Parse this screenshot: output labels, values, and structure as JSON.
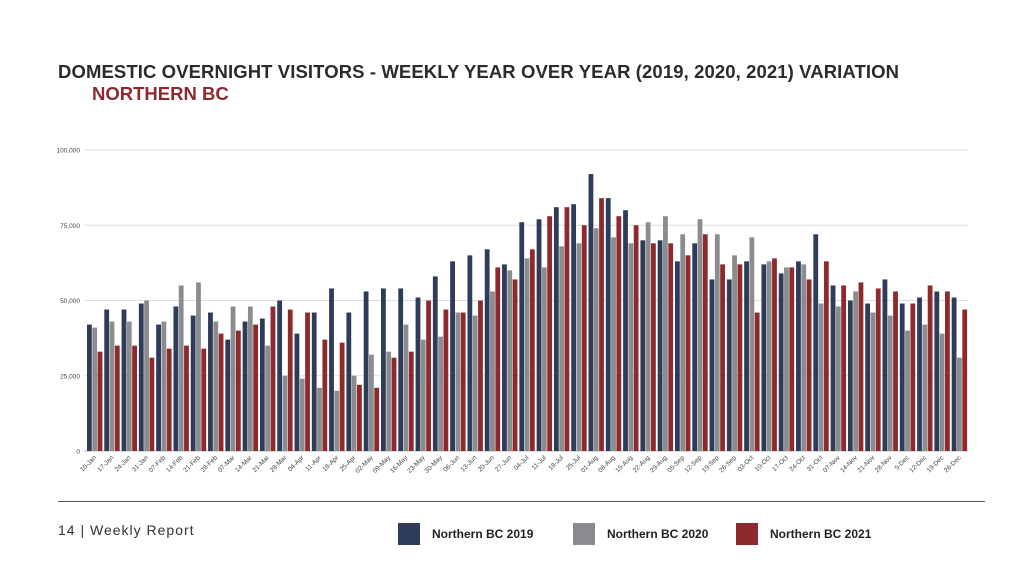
{
  "page": {
    "title": "DOMESTIC OVERNIGHT VISITORS - WEEKLY YEAR OVER YEAR (2019, 2020, 2021) VARIATION",
    "subtitle": "NORTHERN BC",
    "footer": "14 | Weekly Report"
  },
  "colors": {
    "s2019": "#2e3c5a",
    "s2020": "#8b8c8f",
    "s2021": "#8e2a2e",
    "grid": "#dddddd",
    "text": "#333333"
  },
  "chart_data": {
    "type": "bar",
    "title": "DOMESTIC OVERNIGHT VISITORS - WEEKLY YEAR OVER YEAR (2019, 2020, 2021) VARIATION",
    "subtitle": "NORTHERN BC",
    "xlabel": "",
    "ylabel": "",
    "ylim": [
      0,
      100000
    ],
    "yticks": [
      0,
      25000,
      50000,
      75000,
      100000
    ],
    "ytick_labels": [
      "0",
      "25,000",
      "50,000",
      "75,000",
      "100,000"
    ],
    "grid": true,
    "legend": "bottom",
    "categories": [
      "10-Jan",
      "17-Jan",
      "24-Jan",
      "31-Jan",
      "07-Feb",
      "14-Feb",
      "21-Feb",
      "28-Feb",
      "07-Mar",
      "14-Mar",
      "21-Mar",
      "28-Mar",
      "04-Apr",
      "11-Apr",
      "18-Apr",
      "25-Apr",
      "02-May",
      "09-May",
      "16-May",
      "23-May",
      "30-May",
      "06-Jun",
      "13-Jun",
      "20-Jun",
      "27-Jun",
      "04-Jul",
      "11-Jul",
      "18-Jul",
      "25-Jul",
      "01-Aug",
      "08-Aug",
      "15-Aug",
      "22-Aug",
      "29-Aug",
      "05-Sep",
      "12-Sep",
      "19-Sep",
      "26-Sep",
      "03-Oct",
      "10-Oct",
      "17-Oct",
      "24-Oct",
      "31-Oct",
      "07-Nov",
      "14-Nov",
      "21-Nov",
      "28-Nov",
      "5-Dec",
      "12-Dec",
      "19-Dec",
      "26-Dec"
    ],
    "series": [
      {
        "name": "Northern BC 2019",
        "color": "#2e3c5a",
        "values": [
          42000,
          47000,
          47000,
          49000,
          42000,
          48000,
          45000,
          46000,
          37000,
          43000,
          44000,
          50000,
          39000,
          46000,
          54000,
          46000,
          53000,
          54000,
          54000,
          51000,
          58000,
          63000,
          65000,
          67000,
          62000,
          76000,
          77000,
          81000,
          82000,
          92000,
          84000,
          80000,
          70000,
          70000,
          63000,
          69000,
          57000,
          57000,
          63000,
          62000,
          59000,
          63000,
          72000,
          55000,
          50000,
          49000,
          57000,
          49000,
          51000,
          53000,
          51000
        ]
      },
      {
        "name": "Northern BC 2020",
        "color": "#8b8c8f",
        "values": [
          41000,
          43000,
          43000,
          50000,
          43000,
          55000,
          56000,
          43000,
          48000,
          48000,
          35000,
          25000,
          24000,
          21000,
          20000,
          25000,
          32000,
          33000,
          42000,
          37000,
          38000,
          46000,
          45000,
          53000,
          60000,
          64000,
          61000,
          68000,
          69000,
          74000,
          71000,
          69000,
          76000,
          78000,
          72000,
          77000,
          72000,
          65000,
          71000,
          63000,
          61000,
          62000,
          49000,
          48000,
          53000,
          46000,
          45000,
          40000,
          42000,
          39000,
          31000
        ]
      },
      {
        "name": "Northern BC  2021",
        "color": "#8e2a2e",
        "values": [
          33000,
          35000,
          35000,
          31000,
          34000,
          35000,
          34000,
          39000,
          40000,
          42000,
          48000,
          47000,
          46000,
          37000,
          36000,
          22000,
          21000,
          31000,
          33000,
          50000,
          47000,
          46000,
          50000,
          61000,
          57000,
          67000,
          78000,
          81000,
          75000,
          84000,
          78000,
          75000,
          69000,
          69000,
          65000,
          72000,
          62000,
          62000,
          46000,
          64000,
          61000,
          57000,
          63000,
          55000,
          56000,
          54000,
          53000,
          49000,
          55000,
          53000,
          47000
        ]
      }
    ]
  }
}
